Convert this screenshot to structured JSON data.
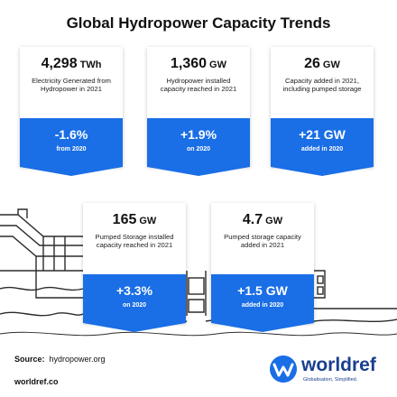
{
  "title": "Global Hydropower Capacity Trends",
  "cards": [
    {
      "value": "4,298",
      "unit": "TWh",
      "description": "Electricity Generated from Hydropower in 2021",
      "change": "-1.6%",
      "change_note": "from 2020"
    },
    {
      "value": "1,360",
      "unit": "GW",
      "description": "Hydropower installed capacity reached in 2021",
      "change": "+1.9%",
      "change_note": "on 2020"
    },
    {
      "value": "26",
      "unit": "GW",
      "description": "Capacity added in 2021, including pumped storage",
      "change": "+21 GW",
      "change_note": "added in 2020"
    },
    {
      "value": "165",
      "unit": "GW",
      "description": "Pumped Storage installed capacity reached in 2021",
      "change": "+3.3%",
      "change_note": "on 2020"
    },
    {
      "value": "4.7",
      "unit": "GW",
      "description": "Pumped storage capacity added in 2021",
      "change": "+1.5 GW",
      "change_note": "added in 2020"
    }
  ],
  "source": {
    "label": "Source:",
    "value": "hydropower.org"
  },
  "site": "worldref.co",
  "brand": {
    "name": "worldref",
    "tagline": "Globalisation, Simplified."
  },
  "colors": {
    "accent": "#1a6ee6",
    "brand": "#1a3f8f",
    "line": "#2b2b2b"
  },
  "icons": [
    "dam-illustration",
    "worldref-logo-icon"
  ]
}
